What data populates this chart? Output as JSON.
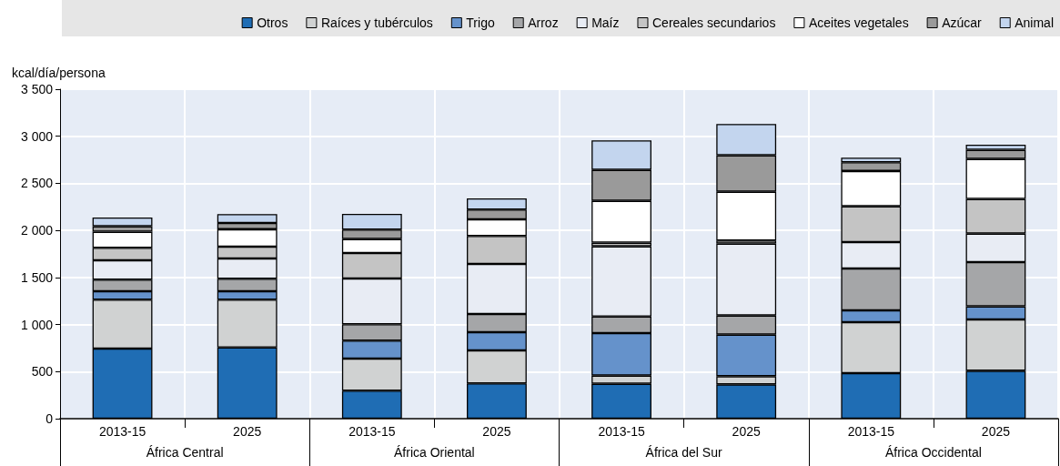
{
  "chart_data": {
    "type": "bar",
    "stacked": true,
    "ylabel": "kcal/día/persona",
    "categories": [
      "2013-15",
      "2025",
      "2013-15",
      "2025",
      "2013-15",
      "2025",
      "2013-15",
      "2025"
    ],
    "annotations": [
      "África Central",
      "África Oriental",
      "África del Sur",
      "África Occidental"
    ],
    "ylim": [
      0,
      3500
    ],
    "yticks": [
      0,
      500,
      {
        "value": 1000,
        "label": "1 000"
      },
      {
        "value": 1500,
        "label": "1 500"
      },
      {
        "value": 2000,
        "label": "2 000"
      },
      {
        "value": 2500,
        "label": "2 500"
      },
      {
        "value": 3000,
        "label": "3 000"
      },
      {
        "value": 3500,
        "label": "3 500"
      }
    ],
    "grid": true,
    "legend": "top",
    "series": [
      {
        "name": "Otros",
        "color": "#1f6db4",
        "values": [
          745,
          757,
          297,
          374,
          371,
          364,
          484,
          509
        ]
      },
      {
        "name": "Raíces y tubérculos",
        "color": "#d0d2d2",
        "values": [
          519,
          507,
          341,
          351,
          87,
          87,
          541,
          545
        ]
      },
      {
        "name": "Trigo",
        "color": "#6592cb",
        "values": [
          90,
          90,
          191,
          194,
          451,
          442,
          126,
          139
        ]
      },
      {
        "name": "Arroz",
        "color": "#a5a6a8",
        "values": [
          123,
          132,
          174,
          193,
          177,
          203,
          445,
          470
        ]
      },
      {
        "name": "Maíz",
        "color": "#e8ecf4",
        "values": [
          206,
          216,
          486,
          532,
          745,
          764,
          280,
          303
        ]
      },
      {
        "name": "Cereales secundarios",
        "color": "#c4c4c4",
        "values": [
          132,
          126,
          271,
          297,
          39,
          32,
          380,
          368
        ]
      },
      {
        "name": "Aceites vegetales",
        "color": "#ffffff",
        "values": [
          171,
          184,
          148,
          177,
          444,
          519,
          375,
          425
        ]
      },
      {
        "name": "Azúcar",
        "color": "#9a9a9a",
        "values": [
          58,
          67,
          100,
          103,
          329,
          387,
          93,
          97
        ]
      },
      {
        "name": "Animal",
        "color": "#c3d5ee",
        "values": [
          93,
          94,
          168,
          119,
          313,
          333,
          48,
          55
        ]
      }
    ]
  }
}
